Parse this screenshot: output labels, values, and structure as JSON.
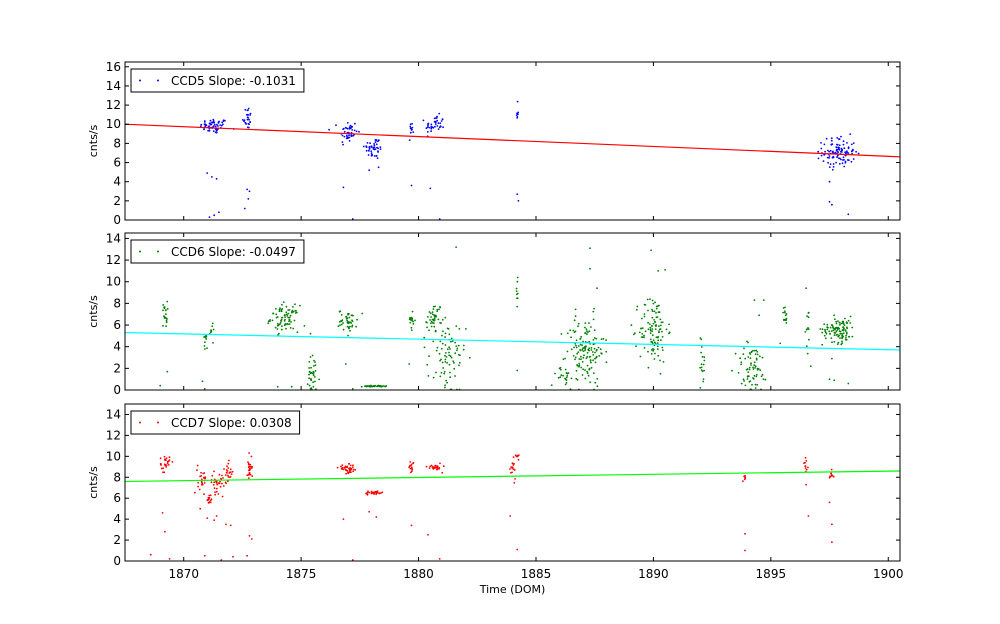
{
  "chart_data": [
    {
      "type": "scatter",
      "name": "ccd5-panel",
      "ylabel": "cnts/s",
      "xlim": [
        1867.5,
        1900.5
      ],
      "ylim": [
        0,
        16.5
      ],
      "yticks": [
        0,
        2,
        4,
        6,
        8,
        10,
        12,
        14,
        16
      ],
      "point_color": "#0000ff",
      "fit_color": "#ff0000",
      "legend": "CCD5 Slope: -0.1031",
      "legend_position": "top-left",
      "fit": {
        "x": [
          1867.5,
          1900.5
        ],
        "y": [
          10.0,
          6.6
        ]
      },
      "clusters": [
        {
          "x": 1871.3,
          "xs": 0.3,
          "y": 9.8,
          "ys": 0.4,
          "n": 60
        },
        {
          "x": 1872.7,
          "xs": 0.1,
          "y": 10.7,
          "ys": 0.6,
          "n": 25
        },
        {
          "x": 1877.0,
          "xs": 0.2,
          "y": 9.1,
          "ys": 0.7,
          "n": 45
        },
        {
          "x": 1878.1,
          "xs": 0.2,
          "y": 7.5,
          "ys": 0.6,
          "n": 45
        },
        {
          "x": 1879.7,
          "xs": 0.05,
          "y": 9.6,
          "ys": 0.3,
          "n": 12
        },
        {
          "x": 1880.7,
          "xs": 0.2,
          "y": 9.9,
          "ys": 0.5,
          "n": 40
        },
        {
          "x": 1884.2,
          "xs": 0.03,
          "y": 11.2,
          "ys": 0.5,
          "n": 8
        },
        {
          "x": 1897.9,
          "xs": 0.35,
          "y": 7.1,
          "ys": 0.8,
          "n": 110
        }
      ],
      "points": [
        [
          1871.0,
          4.9
        ],
        [
          1871.2,
          4.5
        ],
        [
          1871.4,
          4.3
        ],
        [
          1871.1,
          0.3
        ],
        [
          1871.3,
          0.5
        ],
        [
          1871.5,
          0.8
        ],
        [
          1872.6,
          1.2
        ],
        [
          1872.7,
          3.2
        ],
        [
          1872.8,
          3.0
        ],
        [
          1872.75,
          2.2
        ],
        [
          1876.8,
          3.4
        ],
        [
          1877.2,
          0.1
        ],
        [
          1877.9,
          5.2
        ],
        [
          1878.3,
          5.5
        ],
        [
          1879.7,
          3.6
        ],
        [
          1880.5,
          3.3
        ],
        [
          1880.9,
          0.1
        ],
        [
          1884.2,
          2.7
        ],
        [
          1884.25,
          2.0
        ],
        [
          1897.5,
          4.0
        ],
        [
          1897.5,
          1.9
        ],
        [
          1897.6,
          1.6
        ],
        [
          1898.3,
          0.6
        ]
      ]
    },
    {
      "type": "scatter",
      "name": "ccd6-panel",
      "ylabel": "cnts/s",
      "xlim": [
        1867.5,
        1900.5
      ],
      "ylim": [
        0,
        14.5
      ],
      "yticks": [
        0,
        2,
        4,
        6,
        8,
        10,
        12,
        14
      ],
      "point_color": "#008000",
      "fit_color": "#00ffff",
      "legend": "CCD6 Slope: -0.0497",
      "legend_position": "top-left",
      "fit": {
        "x": [
          1867.5,
          1900.5
        ],
        "y": [
          5.3,
          3.7
        ]
      },
      "clusters": [
        {
          "x": 1869.2,
          "xs": 0.05,
          "y": 7.0,
          "ys": 0.6,
          "n": 20
        },
        {
          "x": 1870.9,
          "xs": 0.05,
          "y": 4.3,
          "ys": 0.5,
          "n": 10
        },
        {
          "x": 1871.2,
          "xs": 0.05,
          "y": 5.5,
          "ys": 0.4,
          "n": 10
        },
        {
          "x": 1874.3,
          "xs": 0.3,
          "y": 6.6,
          "ys": 0.6,
          "n": 80
        },
        {
          "x": 1875.5,
          "xs": 0.15,
          "y": 1.2,
          "ys": 1.0,
          "n": 35
        },
        {
          "x": 1877.0,
          "xs": 0.2,
          "y": 6.4,
          "ys": 0.5,
          "n": 45
        },
        {
          "x": 1878.1,
          "xs": 0.25,
          "y": 0.35,
          "ys": 0.03,
          "n": 40
        },
        {
          "x": 1879.7,
          "xs": 0.05,
          "y": 6.5,
          "ys": 0.5,
          "n": 15
        },
        {
          "x": 1880.7,
          "xs": 0.15,
          "y": 6.8,
          "ys": 0.6,
          "n": 40
        },
        {
          "x": 1881.2,
          "xs": 0.4,
          "y": 2.8,
          "ys": 1.8,
          "n": 80
        },
        {
          "x": 1884.2,
          "xs": 0.03,
          "y": 9.3,
          "ys": 0.5,
          "n": 8
        },
        {
          "x": 1886.2,
          "xs": 0.3,
          "y": 1.3,
          "ys": 0.4,
          "n": 20
        },
        {
          "x": 1887.1,
          "xs": 0.4,
          "y": 3.6,
          "ys": 1.6,
          "n": 140
        },
        {
          "x": 1890.0,
          "xs": 0.3,
          "y": 5.6,
          "ys": 1.6,
          "n": 110
        },
        {
          "x": 1892.1,
          "xs": 0.05,
          "y": 2.6,
          "ys": 1.0,
          "n": 15
        },
        {
          "x": 1894.2,
          "xs": 0.35,
          "y": 2.0,
          "ys": 1.2,
          "n": 70
        },
        {
          "x": 1895.6,
          "xs": 0.05,
          "y": 6.8,
          "ys": 0.5,
          "n": 15
        },
        {
          "x": 1896.6,
          "xs": 0.05,
          "y": 5.5,
          "ys": 1.0,
          "n": 12
        },
        {
          "x": 1897.9,
          "xs": 0.35,
          "y": 5.6,
          "ys": 0.6,
          "n": 110
        }
      ],
      "points": [
        [
          1869.0,
          0.4
        ],
        [
          1869.3,
          1.7
        ],
        [
          1870.8,
          0.8
        ],
        [
          1870.9,
          0.1
        ],
        [
          1874.0,
          0.3
        ],
        [
          1874.6,
          0.3
        ],
        [
          1875.4,
          5.2
        ],
        [
          1876.9,
          2.4
        ],
        [
          1877.2,
          0.1
        ],
        [
          1879.6,
          2.4
        ],
        [
          1881.6,
          13.2
        ],
        [
          1884.2,
          1.8
        ],
        [
          1884.2,
          7.7
        ],
        [
          1887.3,
          13.1
        ],
        [
          1887.3,
          11.2
        ],
        [
          1887.6,
          9.4
        ],
        [
          1889.9,
          12.9
        ],
        [
          1890.2,
          11.0
        ],
        [
          1890.3,
          1.5
        ],
        [
          1892.0,
          0.2
        ],
        [
          1892.0,
          4.8
        ],
        [
          1894.3,
          8.3
        ],
        [
          1894.5,
          6.9
        ],
        [
          1894.7,
          8.3
        ],
        [
          1895.4,
          4.3
        ],
        [
          1896.5,
          9.4
        ],
        [
          1896.7,
          2.2
        ],
        [
          1897.5,
          1.0
        ],
        [
          1897.6,
          2.9
        ],
        [
          1897.7,
          0.9
        ],
        [
          1898.3,
          0.6
        ]
      ]
    },
    {
      "type": "scatter",
      "name": "ccd7-panel",
      "ylabel": "cnts/s",
      "xlabel": "Time (DOM)",
      "xlim": [
        1867.5,
        1900.5
      ],
      "ylim": [
        0,
        15
      ],
      "yticks": [
        0,
        2,
        4,
        6,
        8,
        10,
        12,
        14
      ],
      "xticks": [
        1870,
        1875,
        1880,
        1885,
        1890,
        1895,
        1900
      ],
      "point_color": "#ff0000",
      "fit_color": "#00ff00",
      "legend": "CCD7 Slope: 0.0308",
      "legend_position": "top-left",
      "fit": {
        "x": [
          1867.5,
          1900.5
        ],
        "y": [
          7.6,
          8.6
        ]
      },
      "clusters": [
        {
          "x": 1869.2,
          "xs": 0.1,
          "y": 9.3,
          "ys": 0.4,
          "n": 25
        },
        {
          "x": 1870.8,
          "xs": 0.1,
          "y": 8.0,
          "ys": 0.7,
          "n": 25
        },
        {
          "x": 1871.1,
          "xs": 0.05,
          "y": 5.8,
          "ys": 0.2,
          "n": 15
        },
        {
          "x": 1871.5,
          "xs": 0.2,
          "y": 7.5,
          "ys": 0.5,
          "n": 35
        },
        {
          "x": 1871.9,
          "xs": 0.1,
          "y": 8.4,
          "ys": 0.5,
          "n": 20
        },
        {
          "x": 1872.8,
          "xs": 0.05,
          "y": 9.0,
          "ys": 0.7,
          "n": 25
        },
        {
          "x": 1877.0,
          "xs": 0.2,
          "y": 8.8,
          "ys": 0.2,
          "n": 40
        },
        {
          "x": 1878.1,
          "xs": 0.2,
          "y": 6.5,
          "ys": 0.1,
          "n": 35
        },
        {
          "x": 1879.7,
          "xs": 0.05,
          "y": 9.0,
          "ys": 0.3,
          "n": 15
        },
        {
          "x": 1880.7,
          "xs": 0.15,
          "y": 9.0,
          "ys": 0.2,
          "n": 25
        },
        {
          "x": 1884.0,
          "xs": 0.08,
          "y": 8.6,
          "ys": 0.5,
          "n": 15
        },
        {
          "x": 1884.2,
          "xs": 0.03,
          "y": 10.0,
          "ys": 0.3,
          "n": 6
        },
        {
          "x": 1893.9,
          "xs": 0.03,
          "y": 8.0,
          "ys": 0.2,
          "n": 6
        },
        {
          "x": 1896.5,
          "xs": 0.05,
          "y": 9.2,
          "ys": 0.3,
          "n": 10
        },
        {
          "x": 1897.6,
          "xs": 0.05,
          "y": 8.4,
          "ys": 0.3,
          "n": 10
        }
      ],
      "points": [
        [
          1868.6,
          0.6
        ],
        [
          1869.1,
          4.6
        ],
        [
          1869.2,
          2.8
        ],
        [
          1869.4,
          0.2
        ],
        [
          1870.7,
          5.0
        ],
        [
          1870.9,
          0.5
        ],
        [
          1871.0,
          4.1
        ],
        [
          1871.3,
          3.9
        ],
        [
          1871.4,
          4.3
        ],
        [
          1871.6,
          0.1
        ],
        [
          1871.8,
          3.5
        ],
        [
          1872.0,
          3.4
        ],
        [
          1872.1,
          0.4
        ],
        [
          1872.7,
          0.5
        ],
        [
          1872.8,
          2.4
        ],
        [
          1872.9,
          2.1
        ],
        [
          1876.8,
          4.0
        ],
        [
          1877.2,
          0.1
        ],
        [
          1877.9,
          4.7
        ],
        [
          1878.2,
          4.2
        ],
        [
          1879.7,
          3.4
        ],
        [
          1880.4,
          2.5
        ],
        [
          1880.9,
          0.2
        ],
        [
          1883.9,
          4.3
        ],
        [
          1884.2,
          1.1
        ],
        [
          1893.9,
          2.6
        ],
        [
          1893.9,
          1.0
        ],
        [
          1896.5,
          7.3
        ],
        [
          1896.6,
          4.3
        ],
        [
          1897.5,
          5.6
        ],
        [
          1897.6,
          3.5
        ],
        [
          1897.6,
          1.8
        ]
      ]
    }
  ]
}
